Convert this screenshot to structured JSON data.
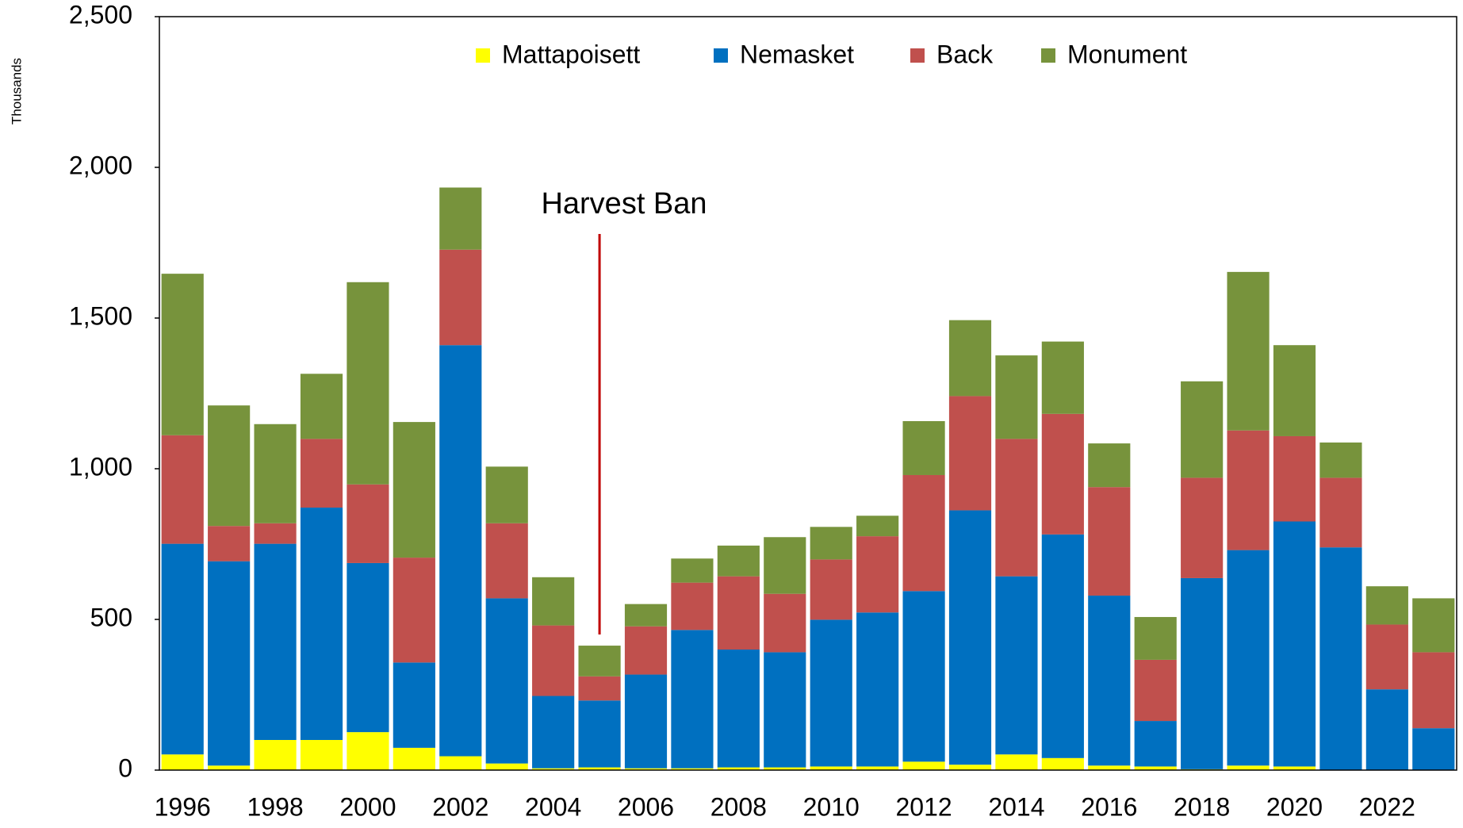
{
  "chart_data": {
    "type": "stacked_bar",
    "y_axis_label": "Thousands",
    "annotation": "Harvest Ban",
    "categories": [
      "1996",
      null,
      "1998",
      null,
      "2000",
      null,
      "2002",
      null,
      "2004",
      null,
      "2006",
      null,
      "2008",
      null,
      "2010",
      null,
      "2012",
      null,
      "2014",
      null,
      "2016",
      null,
      "2018",
      null,
      "2020",
      null,
      "2022",
      null
    ],
    "series": [
      {
        "name": "Mattapoisett",
        "color": "#ffff00",
        "values": [
          52,
          15,
          100,
          100,
          126,
          74,
          46,
          22,
          6,
          9,
          6,
          6,
          9,
          9,
          12,
          12,
          28,
          18,
          52,
          40,
          15,
          12,
          3,
          15,
          12,
          0,
          0,
          0
        ]
      },
      {
        "name": "Nemasket",
        "color": "#0070c0",
        "values": [
          699,
          678,
          651,
          771,
          561,
          283,
          1364,
          548,
          240,
          222,
          311,
          459,
          391,
          382,
          487,
          511,
          566,
          844,
          591,
          742,
          564,
          151,
          634,
          715,
          813,
          739,
          268,
          139
        ]
      },
      {
        "name": "Back",
        "color": "#c0504d",
        "values": [
          360,
          117,
          68,
          228,
          261,
          348,
          317,
          249,
          234,
          80,
          160,
          157,
          243,
          194,
          200,
          253,
          385,
          379,
          456,
          400,
          360,
          203,
          333,
          397,
          283,
          231,
          215,
          252
        ]
      },
      {
        "name": "Monument",
        "color": "#77933c",
        "values": [
          536,
          400,
          329,
          216,
          671,
          450,
          206,
          188,
          160,
          102,
          74,
          80,
          102,
          188,
          108,
          68,
          179,
          252,
          277,
          240,
          145,
          142,
          320,
          526,
          302,
          117,
          127,
          179
        ]
      }
    ],
    "ylim": [
      0,
      2500
    ],
    "yticks": [
      0,
      500,
      {
        "value": 1000,
        "label": "1,000"
      },
      {
        "value": 1500,
        "label": "1,500"
      },
      {
        "value": 2000,
        "label": "2,000"
      },
      {
        "value": 2500,
        "label": "2,500"
      }
    ],
    "legend": "top"
  }
}
